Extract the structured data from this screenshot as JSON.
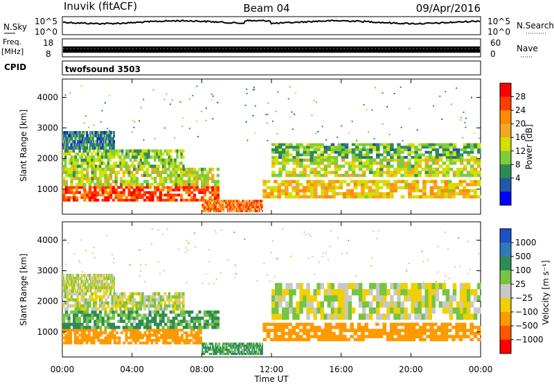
{
  "header": {
    "station": "Inuvik (fitACF)",
    "beam": "Beam 04",
    "date": "09/Apr/2016"
  },
  "strips": {
    "nsky": {
      "label": "N.Sky",
      "ticks": [
        "10^5",
        "10^0"
      ]
    },
    "nsearch": {
      "label": "N.Search",
      "ticks": [
        "10^5",
        "10^0"
      ]
    },
    "freq": {
      "label1": "Freq.",
      "label2": "[MHz]",
      "ticks": [
        "18",
        "8"
      ]
    },
    "nave": {
      "label": "Nave",
      "ticks": [
        "60",
        "0"
      ]
    },
    "cpid": {
      "label": "CPID",
      "value": "twofsound 3503"
    }
  },
  "chart_data": [
    {
      "type": "heatmap",
      "panel": "power",
      "xlabel": "Time UT",
      "ylabel": "Slant Range [km]",
      "xlim": [
        0,
        24
      ],
      "ylim": [
        180,
        4600
      ],
      "xticks": [
        "00:00",
        "04:00",
        "08:00",
        "12:00",
        "16:00",
        "20:00",
        "00:00"
      ],
      "yticks": [
        1000,
        2000,
        3000,
        4000
      ],
      "colorbar": {
        "label": "Power [dB]",
        "tick_labels": [
          "28",
          "24",
          "20",
          "16",
          "12",
          "8",
          "4"
        ],
        "colors": [
          "#ff0000",
          "#ff3c00",
          "#ff8c00",
          "#f5a623",
          "#d4e000",
          "#7ccd3a",
          "#2e8b57",
          "#1e5aa8",
          "#0000ff"
        ]
      },
      "bands": [
        {
          "x": [
            0,
            9
          ],
          "range": [
            600,
            1100
          ],
          "level": 26
        },
        {
          "x": [
            0,
            9
          ],
          "range": [
            1100,
            1700
          ],
          "level": 14
        },
        {
          "x": [
            0,
            7
          ],
          "range": [
            1700,
            2300
          ],
          "level": 12
        },
        {
          "x": [
            0,
            3
          ],
          "range": [
            2300,
            2900
          ],
          "level": 6
        },
        {
          "x": [
            8,
            11.5
          ],
          "range": [
            250,
            650
          ],
          "level": 24
        },
        {
          "x": [
            11.5,
            24
          ],
          "range": [
            700,
            1300
          ],
          "level": 18
        },
        {
          "x": [
            12,
            24
          ],
          "range": [
            1400,
            2000
          ],
          "level": 14
        },
        {
          "x": [
            12,
            24
          ],
          "range": [
            2000,
            2500
          ],
          "level": 10
        }
      ]
    },
    {
      "type": "heatmap",
      "panel": "velocity",
      "xlabel": "Time UT",
      "ylabel": "Slant Range [km]",
      "xlim": [
        0,
        24
      ],
      "ylim": [
        180,
        4600
      ],
      "xticks": [
        "00:00",
        "04:00",
        "08:00",
        "12:00",
        "16:00",
        "20:00",
        "00:00"
      ],
      "yticks": [
        1000,
        2000,
        3000,
        4000
      ],
      "colorbar": {
        "label": "Velocity [m s⁻¹]",
        "tick_labels": [
          "1000",
          "500",
          "100",
          "25",
          "−25",
          "−100",
          "−500",
          "−1000"
        ],
        "colors": [
          "#1e50c8",
          "#2f7ab8",
          "#2e8b57",
          "#76c442",
          "#c8c8c8",
          "#f0d000",
          "#ff9900",
          "#ff5500",
          "#ff0000"
        ]
      },
      "bands": [
        {
          "x": [
            0,
            8
          ],
          "range": [
            600,
            1100
          ],
          "level": -300
        },
        {
          "x": [
            0,
            9
          ],
          "range": [
            1100,
            1700
          ],
          "level": 120
        },
        {
          "x": [
            0,
            7
          ],
          "range": [
            1700,
            2300
          ],
          "level": 0
        },
        {
          "x": [
            0,
            3
          ],
          "range": [
            2300,
            2900
          ],
          "level": 0
        },
        {
          "x": [
            8,
            11.5
          ],
          "range": [
            250,
            650
          ],
          "level": 150
        },
        {
          "x": [
            11.5,
            24
          ],
          "range": [
            700,
            1300
          ],
          "level": -300
        },
        {
          "x": [
            12,
            24
          ],
          "range": [
            1400,
            2600
          ],
          "level": 0
        }
      ]
    }
  ]
}
